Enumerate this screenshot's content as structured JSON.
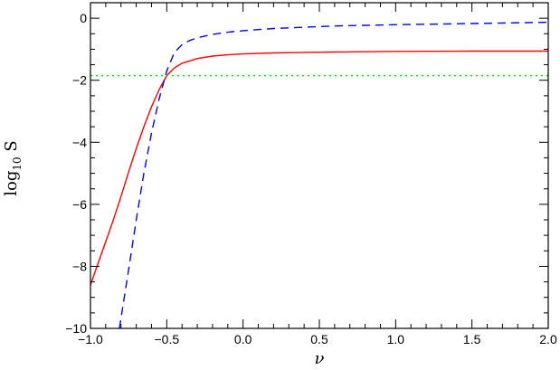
{
  "chart_data": {
    "type": "line",
    "title": "",
    "xlabel": "ν",
    "ylabel_main": "log",
    "ylabel_sub": "10",
    "ylabel_tail": " S",
    "xlim": [
      -1.0,
      2.0
    ],
    "ylim": [
      -10,
      0.5
    ],
    "xticks": [
      -1.0,
      -0.5,
      0.0,
      0.5,
      1.0,
      1.5,
      2.0
    ],
    "xtick_labels": [
      "−1.0",
      "−0.5",
      "0.0",
      "0.5",
      "1.0",
      "1.5",
      "2.0"
    ],
    "yticks": [
      0,
      -2,
      -4,
      -6,
      -8,
      -10
    ],
    "ytick_labels": [
      "0",
      "−2",
      "−4",
      "−6",
      "−8",
      "−10"
    ],
    "grid": false,
    "legend": "none",
    "series": [
      {
        "style": "solid",
        "color": "#ff0000",
        "x": [
          -1.0,
          -0.95,
          -0.9,
          -0.85,
          -0.8,
          -0.75,
          -0.7,
          -0.65,
          -0.6,
          -0.55,
          -0.5,
          -0.45,
          -0.4,
          -0.3,
          -0.2,
          -0.1,
          0.0,
          0.2,
          0.4,
          0.6,
          0.8,
          1.0,
          1.25,
          1.5,
          1.75,
          2.0
        ],
        "y": [
          -8.6,
          -7.9,
          -7.2,
          -6.5,
          -5.75,
          -4.95,
          -4.2,
          -3.5,
          -2.85,
          -2.3,
          -1.85,
          -1.6,
          -1.45,
          -1.3,
          -1.22,
          -1.18,
          -1.15,
          -1.12,
          -1.1,
          -1.09,
          -1.08,
          -1.07,
          -1.065,
          -1.06,
          -1.06,
          -1.06
        ]
      },
      {
        "style": "dashed",
        "color": "#0000ff",
        "x": [
          -0.81,
          -0.75,
          -0.7,
          -0.65,
          -0.6,
          -0.55,
          -0.5,
          -0.45,
          -0.4,
          -0.35,
          -0.3,
          -0.2,
          -0.1,
          0.0,
          0.2,
          0.4,
          0.6,
          0.8,
          1.0,
          1.25,
          1.5,
          1.75,
          2.0
        ],
        "y": [
          -10.0,
          -8.1,
          -6.5,
          -5.0,
          -3.7,
          -2.6,
          -1.7,
          -1.1,
          -0.85,
          -0.72,
          -0.63,
          -0.52,
          -0.45,
          -0.4,
          -0.33,
          -0.29,
          -0.25,
          -0.23,
          -0.21,
          -0.19,
          -0.17,
          -0.15,
          -0.13
        ]
      },
      {
        "style": "dotted",
        "color": "#00dd00",
        "x": [
          -1.0,
          2.0
        ],
        "y": [
          -1.85,
          -1.85
        ]
      }
    ]
  }
}
